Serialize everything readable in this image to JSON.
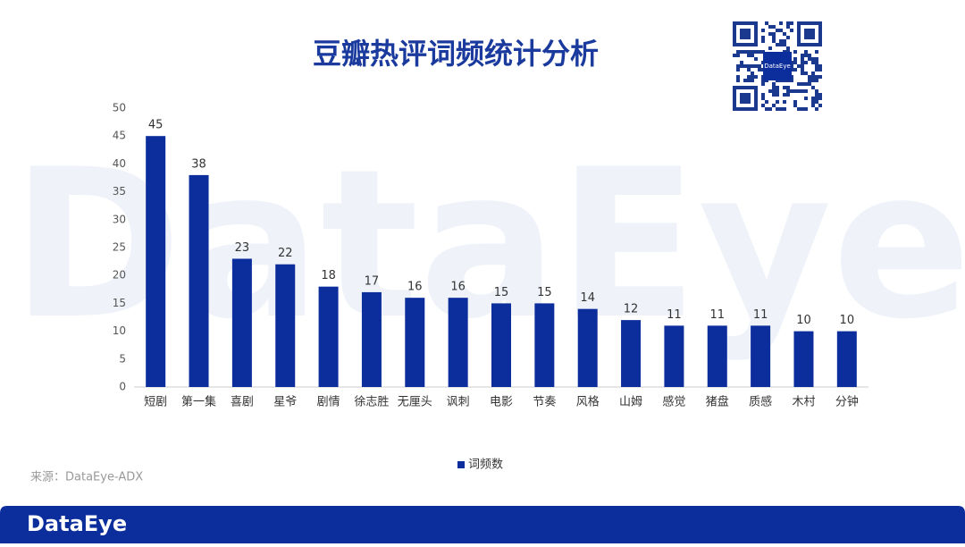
{
  "chart_data": {
    "type": "bar",
    "title": "豆瓣热评词频统计分析",
    "categories": [
      "短剧",
      "第一集",
      "喜剧",
      "星爷",
      "剧情",
      "徐志胜",
      "无厘头",
      "讽刺",
      "电影",
      "节奏",
      "风格",
      "山姆",
      "感觉",
      "猪盘",
      "质感",
      "木村",
      "分钟"
    ],
    "series": [
      {
        "name": "词频数",
        "color": "#0c2d9c",
        "values": [
          45,
          38,
          23,
          22,
          18,
          17,
          16,
          16,
          15,
          15,
          14,
          12,
          11,
          11,
          11,
          10,
          10
        ]
      }
    ],
    "ylim": [
      0,
      50
    ],
    "yticks": [
      0,
      5,
      10,
      15,
      20,
      25,
      30,
      35,
      40,
      45,
      50
    ],
    "grid": false,
    "legend": "bottom"
  },
  "watermark": "DataEye",
  "qr_label": "DataEye",
  "source": "来源：DataEye-ADX",
  "footer_logo": "DataEye"
}
